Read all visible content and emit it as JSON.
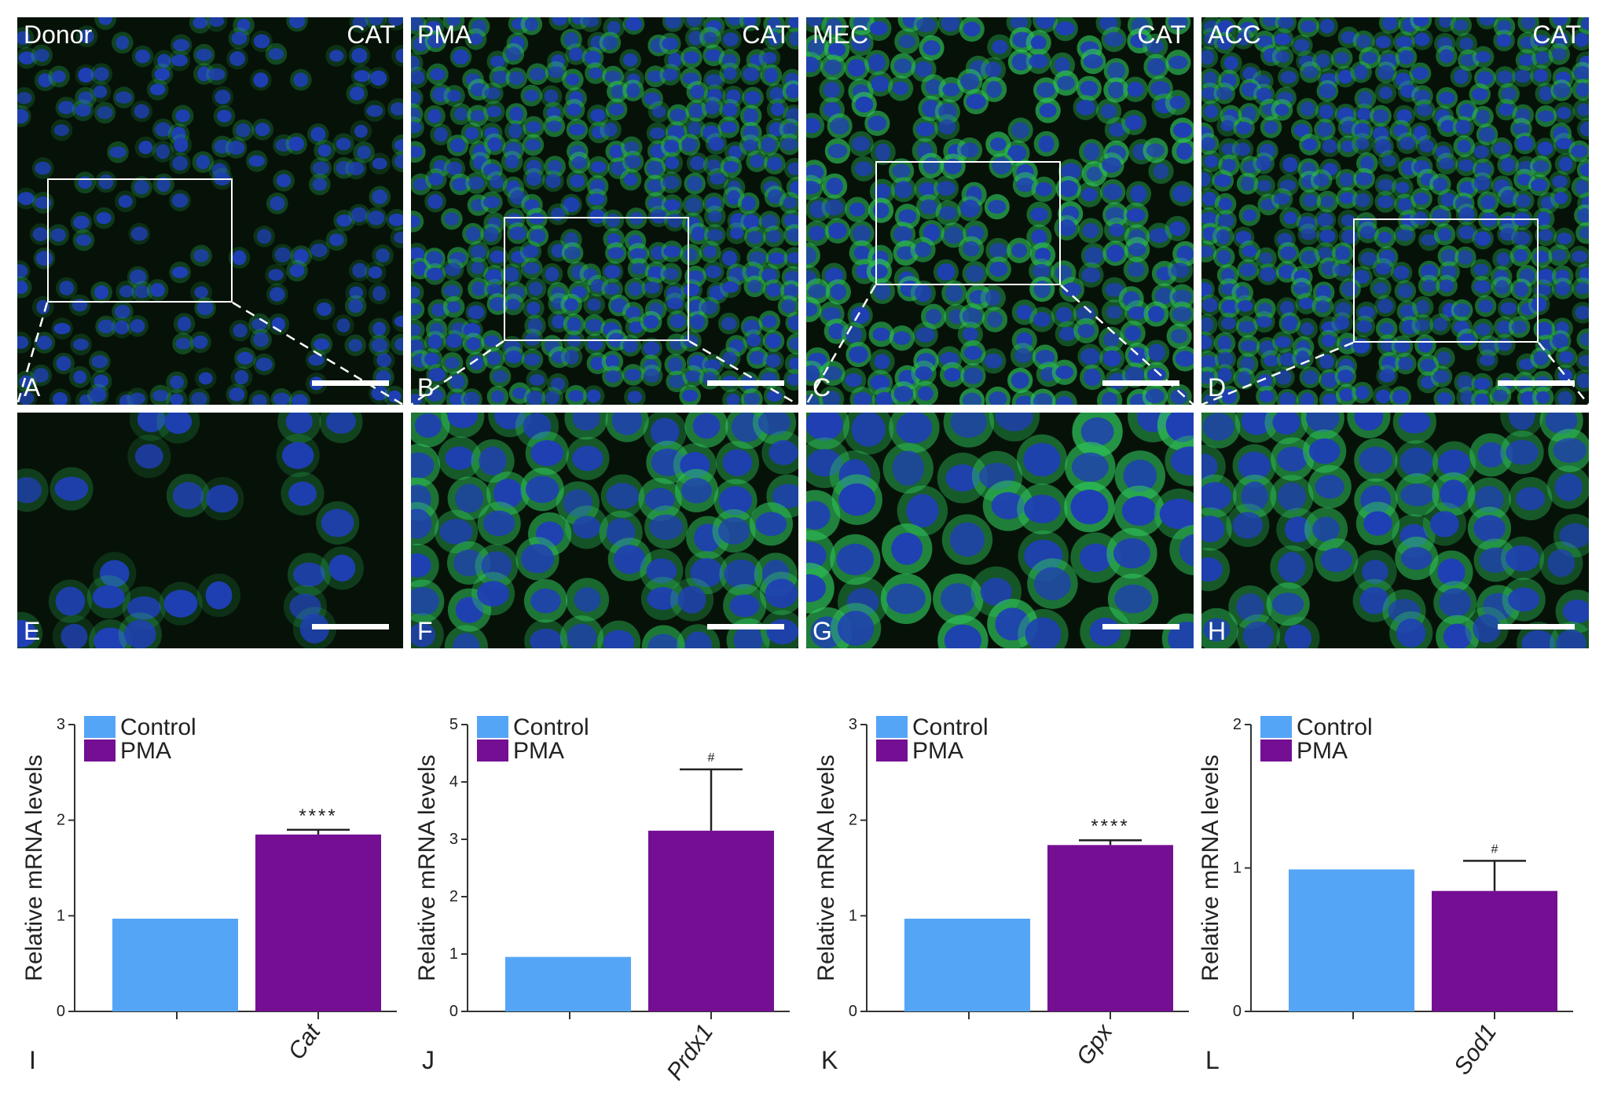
{
  "micrographs": {
    "top": [
      {
        "group": "Donor",
        "stain": "CAT",
        "letter": "A"
      },
      {
        "group": "PMA",
        "stain": "CAT",
        "letter": "B"
      },
      {
        "group": "MEC",
        "stain": "CAT",
        "letter": "C"
      },
      {
        "group": "ACC",
        "stain": "CAT",
        "letter": "D"
      }
    ],
    "bottom": [
      {
        "letter": "E"
      },
      {
        "letter": "F"
      },
      {
        "letter": "G"
      },
      {
        "letter": "H"
      }
    ],
    "colors": {
      "nuclei": "#1f3fb5",
      "cytoplasm": "#2fc25a",
      "background": "#061208"
    }
  },
  "chart_data": [
    {
      "type": "bar",
      "panel": "I",
      "gene": "Cat",
      "ylabel": "Relative mRNA levels",
      "ylim": [
        0,
        3
      ],
      "yticks": [
        0,
        1,
        2,
        3
      ],
      "series": [
        {
          "name": "Control",
          "color": "#55a5f7"
        },
        {
          "name": "PMA",
          "color": "#740f93"
        }
      ],
      "values": [
        0.97,
        1.85
      ],
      "errors": [
        0,
        0.05
      ],
      "significance": [
        "",
        "****"
      ]
    },
    {
      "type": "bar",
      "panel": "J",
      "gene": "Prdx1",
      "ylabel": "Relative mRNA levels",
      "ylim": [
        0,
        5
      ],
      "yticks": [
        0,
        1,
        2,
        3,
        4,
        5
      ],
      "series": [
        {
          "name": "Control",
          "color": "#55a5f7"
        },
        {
          "name": "PMA",
          "color": "#740f93"
        }
      ],
      "values": [
        0.95,
        3.15
      ],
      "errors": [
        0,
        1.07
      ],
      "significance": [
        "",
        "#"
      ]
    },
    {
      "type": "bar",
      "panel": "K",
      "gene": "Gpx",
      "ylabel": "Relative mRNA levels",
      "ylim": [
        0,
        3
      ],
      "yticks": [
        0,
        1,
        2,
        3
      ],
      "series": [
        {
          "name": "Control",
          "color": "#55a5f7"
        },
        {
          "name": "PMA",
          "color": "#740f93"
        }
      ],
      "values": [
        0.97,
        1.74
      ],
      "errors": [
        0,
        0.05
      ],
      "significance": [
        "",
        "****"
      ]
    },
    {
      "type": "bar",
      "panel": "L",
      "gene": "Sod1",
      "ylabel": "Relative mRNA levels",
      "ylim": [
        0,
        2
      ],
      "yticks": [
        0,
        1,
        2
      ],
      "series": [
        {
          "name": "Control",
          "color": "#55a5f7"
        },
        {
          "name": "PMA",
          "color": "#740f93"
        }
      ],
      "values": [
        0.99,
        0.84
      ],
      "errors": [
        0,
        0.21
      ],
      "significance": [
        "",
        "#"
      ]
    }
  ]
}
